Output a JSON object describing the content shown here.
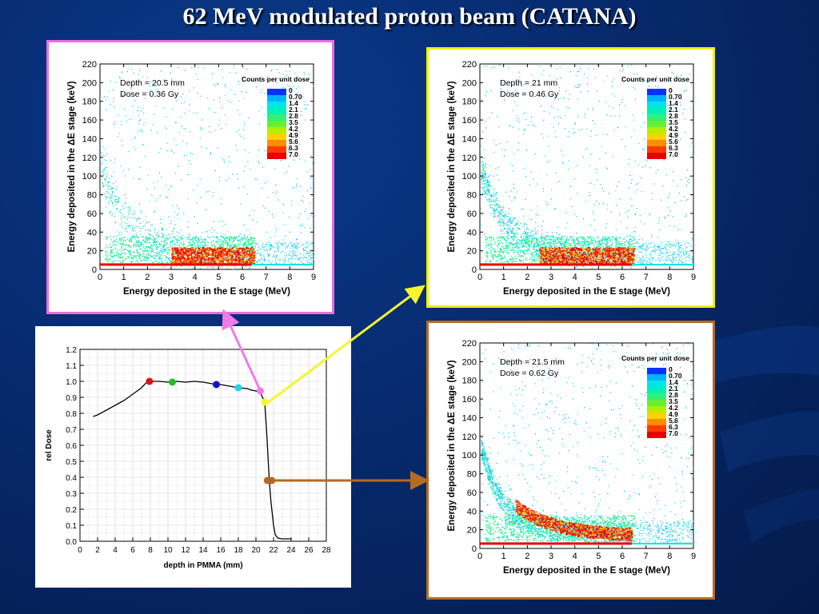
{
  "title": "62 MeV modulated proton beam (CATANA)",
  "colors": {
    "panel_a_border": "#e86fe0",
    "panel_b_border": "#f0f000",
    "panel_c_border": "#b46a23",
    "arrow_pink": "#f07ae8",
    "arrow_yellow": "#f5f530",
    "arrow_brown": "#b46a23"
  },
  "color_scale": {
    "label": "Counts per unit dose",
    "ticks": [
      "0",
      "0.70",
      "1.4",
      "2.1",
      "2.8",
      "3.5",
      "4.2",
      "4.9",
      "5.6",
      "6.3",
      "7.0"
    ],
    "colors": [
      "#0033ff",
      "#00b4ff",
      "#00e6e6",
      "#00f0b4",
      "#33f077",
      "#66ee33",
      "#b4ee00",
      "#ffd200",
      "#ff8c00",
      "#ff3a00",
      "#e60000"
    ]
  },
  "chart_data": [
    {
      "type": "heatmap",
      "panel": "a",
      "xlabel": "Energy deposited in the E stage (MeV)",
      "ylabel": "Energy deposited in the ΔE stage (keV)",
      "xlim": [
        0,
        9
      ],
      "ylim": [
        0,
        220
      ],
      "xticks": [
        "0",
        "1",
        "2",
        "3",
        "4",
        "5",
        "6",
        "7",
        "8",
        "9"
      ],
      "yticks": [
        "0",
        "20",
        "40",
        "60",
        "80",
        "100",
        "120",
        "140",
        "160",
        "180",
        "200",
        "220"
      ],
      "annotation_depth": "Depth = 20.5 mm",
      "annotation_dose": "Dose = 0.36 Gy",
      "legend_title": "Counts per unit dose",
      "hotspot": {
        "xmin": 3.0,
        "xmax": 6.5,
        "ymin": 5,
        "ymax": 24
      },
      "tail_strength": 0.35
    },
    {
      "type": "heatmap",
      "panel": "b",
      "xlabel": "Energy deposited in the E stage (MeV)",
      "ylabel": "Energy deposited in the ΔE stage (keV)",
      "xlim": [
        0,
        9
      ],
      "ylim": [
        0,
        220
      ],
      "xticks": [
        "0",
        "1",
        "2",
        "3",
        "4",
        "5",
        "6",
        "7",
        "8",
        "9"
      ],
      "yticks": [
        "0",
        "20",
        "40",
        "60",
        "80",
        "100",
        "120",
        "140",
        "160",
        "180",
        "200",
        "220"
      ],
      "annotation_depth": "Depth = 21 mm",
      "annotation_dose": "Dose = 0.46 Gy",
      "legend_title": "Counts per unit dose",
      "hotspot": {
        "xmin": 2.5,
        "xmax": 6.5,
        "ymin": 5,
        "ymax": 24
      },
      "tail_strength": 0.7
    },
    {
      "type": "heatmap",
      "panel": "c",
      "xlabel": "Energy deposited in the E stage (MeV)",
      "ylabel": "Energy deposited in the ΔE stage (keV)",
      "xlim": [
        0,
        9
      ],
      "ylim": [
        0,
        220
      ],
      "xticks": [
        "0",
        "1",
        "2",
        "3",
        "4",
        "5",
        "6",
        "7",
        "8",
        "9"
      ],
      "yticks": [
        "0",
        "20",
        "40",
        "60",
        "80",
        "100",
        "120",
        "140",
        "160",
        "180",
        "200",
        "220"
      ],
      "annotation_depth": "Depth = 21.5 mm",
      "annotation_dose": "Dose = 0.62 Gy",
      "legend_title": "Counts per unit dose",
      "hotspot": {
        "xmin": 1.5,
        "xmax": 6.4,
        "ymin": 10,
        "ymax": 45
      },
      "tail_strength": 1.0
    },
    {
      "type": "line",
      "panel": "d",
      "xlabel": "depth in PMMA (mm)",
      "ylabel": "rel Dose",
      "xlim": [
        0,
        28
      ],
      "ylim": [
        0,
        1.2
      ],
      "xticks": [
        "0",
        "2",
        "4",
        "6",
        "8",
        "10",
        "12",
        "14",
        "16",
        "18",
        "20",
        "22",
        "24",
        "26",
        "28"
      ],
      "yticks": [
        "0.0",
        "0.1",
        "0.2",
        "0.3",
        "0.4",
        "0.5",
        "0.6",
        "0.7",
        "0.8",
        "0.9",
        "1.0",
        "1.1",
        "1.2"
      ],
      "series": [
        {
          "x": [
            1.5,
            2,
            3,
            4,
            5,
            6,
            7,
            7.5,
            8,
            9,
            10,
            11,
            12,
            13,
            14,
            15,
            16,
            17,
            18,
            19,
            19.5,
            20,
            20.5,
            21,
            21.2,
            21.5,
            21.7,
            22,
            22.2,
            22.5,
            23,
            23.5,
            24
          ],
          "y": [
            0.78,
            0.79,
            0.82,
            0.85,
            0.88,
            0.92,
            0.96,
            0.99,
            1.0,
            1.0,
            0.995,
            1.0,
            0.995,
            1.0,
            0.995,
            0.985,
            0.98,
            0.97,
            0.96,
            0.955,
            0.945,
            0.94,
            0.93,
            0.87,
            0.7,
            0.4,
            0.25,
            0.1,
            0.04,
            0.02,
            0.015,
            0.015,
            0.015
          ]
        }
      ],
      "markers": [
        {
          "x": 7.9,
          "y": 1.0,
          "color": "#e01010"
        },
        {
          "x": 10.5,
          "y": 0.995,
          "color": "#20c020"
        },
        {
          "x": 15.5,
          "y": 0.98,
          "color": "#1010e0"
        },
        {
          "x": 18.0,
          "y": 0.96,
          "color": "#20d0f0"
        },
        {
          "x": 20.5,
          "y": 0.94,
          "color": "#f07ae8"
        },
        {
          "x": 21.0,
          "y": 0.87,
          "color": "#f5f530"
        },
        {
          "x": 21.3,
          "y": 0.38,
          "color": "#b46a23"
        },
        {
          "x": 21.8,
          "y": 0.38,
          "color": "#b46a23"
        }
      ]
    }
  ]
}
